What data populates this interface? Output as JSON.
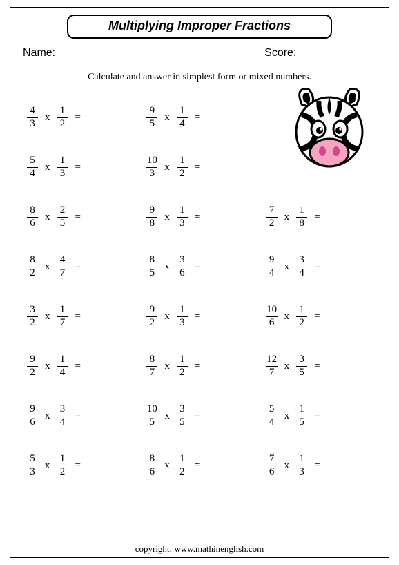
{
  "title": "Multiplying Improper Fractions",
  "name_label": "Name:",
  "score_label": "Score:",
  "instruction": "Calculate and  answer in simplest form or mixed numbers.",
  "operator": "x",
  "equals": "=",
  "copyright": "copyright:   www.mathinenglish.com",
  "colors": {
    "text": "#000000",
    "background": "#ffffff",
    "zebra_nose": "#f7a3c2",
    "zebra_nostril": "#d04a8a"
  },
  "problems": [
    [
      {
        "a": [
          4,
          3
        ],
        "b": [
          1,
          2
        ]
      },
      {
        "a": [
          9,
          5
        ],
        "b": [
          1,
          4
        ]
      },
      null
    ],
    [
      {
        "a": [
          5,
          4
        ],
        "b": [
          1,
          3
        ]
      },
      {
        "a": [
          10,
          3
        ],
        "b": [
          1,
          2
        ]
      },
      null
    ],
    [
      {
        "a": [
          8,
          6
        ],
        "b": [
          2,
          5
        ]
      },
      {
        "a": [
          9,
          8
        ],
        "b": [
          1,
          3
        ]
      },
      {
        "a": [
          7,
          2
        ],
        "b": [
          1,
          8
        ]
      }
    ],
    [
      {
        "a": [
          8,
          2
        ],
        "b": [
          4,
          7
        ]
      },
      {
        "a": [
          8,
          5
        ],
        "b": [
          3,
          6
        ]
      },
      {
        "a": [
          9,
          4
        ],
        "b": [
          3,
          4
        ]
      }
    ],
    [
      {
        "a": [
          3,
          2
        ],
        "b": [
          1,
          7
        ]
      },
      {
        "a": [
          9,
          2
        ],
        "b": [
          1,
          3
        ]
      },
      {
        "a": [
          10,
          6
        ],
        "b": [
          1,
          2
        ]
      }
    ],
    [
      {
        "a": [
          9,
          2
        ],
        "b": [
          1,
          4
        ]
      },
      {
        "a": [
          8,
          7
        ],
        "b": [
          1,
          2
        ]
      },
      {
        "a": [
          12,
          7
        ],
        "b": [
          3,
          5
        ]
      }
    ],
    [
      {
        "a": [
          9,
          6
        ],
        "b": [
          3,
          4
        ]
      },
      {
        "a": [
          10,
          5
        ],
        "b": [
          3,
          5
        ]
      },
      {
        "a": [
          5,
          4
        ],
        "b": [
          1,
          5
        ]
      }
    ],
    [
      {
        "a": [
          5,
          3
        ],
        "b": [
          1,
          2
        ]
      },
      {
        "a": [
          8,
          6
        ],
        "b": [
          1,
          2
        ]
      },
      {
        "a": [
          7,
          6
        ],
        "b": [
          1,
          3
        ]
      }
    ]
  ]
}
